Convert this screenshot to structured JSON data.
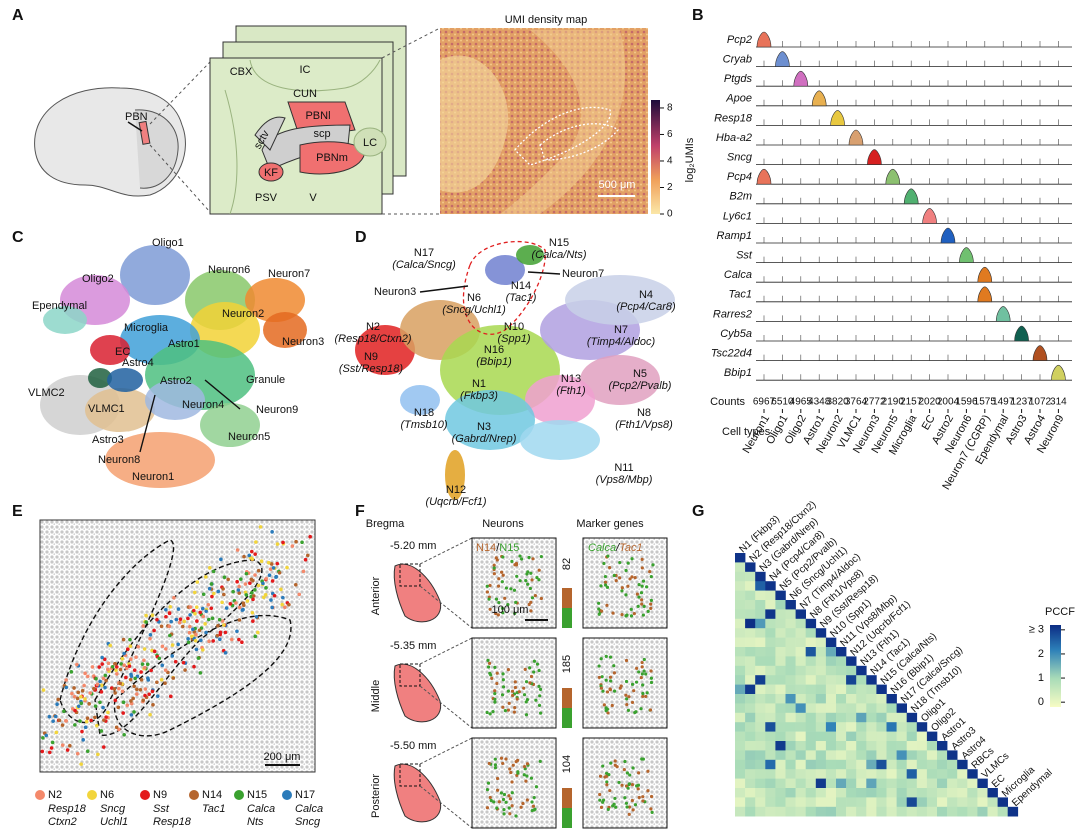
{
  "panel_labels": [
    "A",
    "B",
    "C",
    "D",
    "E",
    "F",
    "G"
  ],
  "panel_a": {
    "brain_label": "PBN",
    "atlas_labels": [
      "CBX",
      "IC",
      "CUN",
      "sctv",
      "PBNl",
      "scp",
      "PBNm",
      "KF",
      "LC",
      "PSV",
      "V"
    ],
    "map_title": "UMI density map",
    "scale_bar": "500 μm",
    "colorbar_label": "log₂UMIs",
    "colorbar_lim": [
      0,
      8.6
    ],
    "colorbar_ticks": [
      0,
      2,
      4,
      6,
      8
    ]
  },
  "panel_b": {
    "genes": [
      "Pcp2",
      "Cryab",
      "Ptgds",
      "Apoe",
      "Resp18",
      "Hba-a2",
      "Sncg",
      "Pcp4",
      "B2m",
      "Ly6c1",
      "Ramp1",
      "Sst",
      "Calca",
      "Tac1",
      "Rarres2",
      "Cyb5a",
      "Tsc22d4",
      "Bbip1"
    ],
    "counts_label": "Counts",
    "counts": [
      6967,
      6510,
      4965,
      4348,
      3820,
      3764,
      2772,
      2190,
      2157,
      2020,
      2004,
      1596,
      1575,
      1497,
      1237,
      1072,
      314
    ],
    "cell_types_label": "Cell types",
    "cell_types": [
      "Neuron1",
      "Oligo1",
      "Oligo2",
      "Astro1",
      "Neuron2",
      "VLMC1",
      "Neuron3",
      "Neuron5",
      "Microglia",
      "EC",
      "Astro2",
      "Neuron6",
      "Neuron7 (CGRP)",
      "Ependymal",
      "Astro3",
      "Astro4",
      "Neuron9"
    ]
  },
  "panel_c": {
    "clusters": [
      "Oligo1",
      "Oligo2",
      "Neuron6",
      "Neuron7",
      "Ependymal",
      "Neuron2",
      "Neuron3",
      "Microglia",
      "Astro1",
      "EC",
      "Astro4",
      "Astro2",
      "Granule",
      "Neuron9",
      "VLMC2",
      "VLMC1",
      "Neuron4",
      "Neuron5",
      "Astro3",
      "Neuron8",
      "Neuron1"
    ]
  },
  "panel_d": {
    "clusters": [
      {
        "name": "N17",
        "markers": "(Calca/Sncg)"
      },
      {
        "name": "N15",
        "markers": "(Calca/Nts)"
      },
      {
        "name": "N14",
        "markers": "(Tac1)"
      },
      {
        "name": "N6",
        "markers": "(Sncg/Uchl1)"
      },
      {
        "name": "N4",
        "markers": "(Pcp4/Car8)"
      },
      {
        "name": "N2",
        "markers": "(Resp18/Ctxn2)"
      },
      {
        "name": "N10",
        "markers": "(Spp1)"
      },
      {
        "name": "N7",
        "markers": "(Timp4/Aldoc)"
      },
      {
        "name": "N16",
        "markers": "(Bbip1)"
      },
      {
        "name": "N9",
        "markers": "(Sst/Resp18)"
      },
      {
        "name": "N1",
        "markers": "(Fkbp3)"
      },
      {
        "name": "N13",
        "markers": "(Fth1)"
      },
      {
        "name": "N5",
        "markers": "(Pcp2/Pvalb)"
      },
      {
        "name": "N18",
        "markers": "(Tmsb10)"
      },
      {
        "name": "N3",
        "markers": "(Gabrd/Nrep)"
      },
      {
        "name": "N8",
        "markers": "(Fth1/Vps8)"
      },
      {
        "name": "N11",
        "markers": "(Vps8/Mbp)"
      },
      {
        "name": "N12",
        "markers": "(Uqcrb/Fcf1)"
      }
    ],
    "arrow_labels": [
      "Neuron7",
      "Neuron3"
    ]
  },
  "panel_e": {
    "legend": [
      {
        "name": "N2",
        "markers": [
          "Resp18",
          "Ctxn2"
        ],
        "color": "#f4896b"
      },
      {
        "name": "N6",
        "markers": [
          "Sncg",
          "Uchl1"
        ],
        "color": "#f2d53c"
      },
      {
        "name": "N9",
        "markers": [
          "Sst",
          "Resp18"
        ],
        "color": "#e31a1c"
      },
      {
        "name": "N14",
        "markers": [
          "Tac1"
        ],
        "color": "#b5652d"
      },
      {
        "name": "N15",
        "markers": [
          "Calca",
          "Nts"
        ],
        "color": "#3aa12f"
      },
      {
        "name": "N17",
        "markers": [
          "Calca",
          "Sncg"
        ],
        "color": "#2b7bba"
      }
    ],
    "scale_bar": "200 μm"
  },
  "panel_f": {
    "column_headers": [
      "Bregma",
      "Neurons",
      "Marker genes"
    ],
    "sections": [
      {
        "bregma": "-5.20 mm",
        "position": "Anterior",
        "count": 82
      },
      {
        "bregma": "-5.35 mm",
        "position": "Middle",
        "count": 185
      },
      {
        "bregma": "-5.50 mm",
        "position": "Posterior",
        "count": 104
      }
    ],
    "neuron_legend": {
      "items": [
        "N14",
        "N15"
      ],
      "separator": "/"
    },
    "marker_legend": {
      "items": [
        "Calca",
        "Tac1"
      ],
      "separator": "/"
    },
    "scale_bar": "100 μm"
  },
  "panel_g": {
    "labels": [
      "N1 (Fkbp3)",
      "N2 (Resp18/Ctxn2)",
      "N3 (Gabrd/Nrep)",
      "N4 (Pcp4/Car8)",
      "N5 (Pcp2/Pvalb)",
      "N6 (Sncg/Uchl1)",
      "N7 (Timp4/Aldoc)",
      "N8 (Fth1/Vps8)",
      "N9 (Sst/Resp18)",
      "N10 (Spp1)",
      "N11 (Vps8/Mbp)",
      "N12 (Uqcrb/Fcf1)",
      "N13 (Fth1)",
      "N14 (Tac1)",
      "N15 (Calca/Nts)",
      "N16 (Bbip1)",
      "N17 (Calca/Sncg)",
      "N18 (Tmsb10)",
      "Oligo1",
      "Oligo2",
      "Astro1",
      "Astro3",
      "Astro4",
      "RBCs",
      "VLMCs",
      "EC",
      "Microglia",
      "Ependymal"
    ],
    "colorbar_title": "PCCF",
    "colorbar_lim": [
      -0.2,
      3.2
    ],
    "colorbar_ticks": [
      {
        "value": 3,
        "label": "≥ 3"
      },
      2,
      1,
      0
    ]
  }
}
